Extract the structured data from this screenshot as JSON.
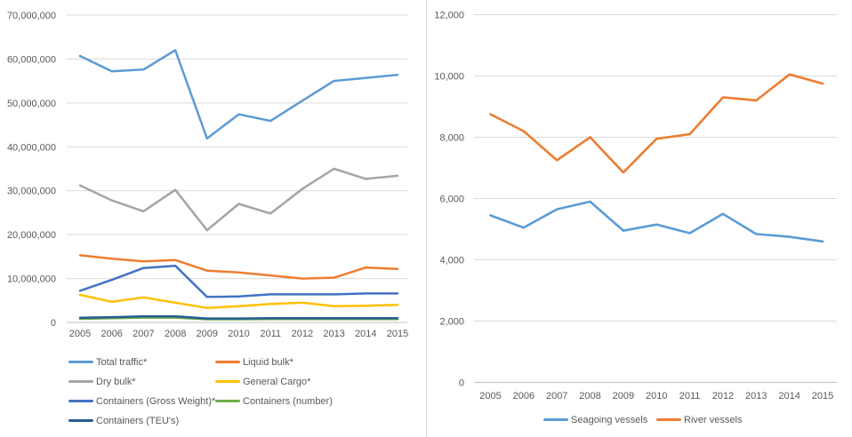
{
  "page": {
    "background": "#ffffff",
    "divider_color": "#d9d9d9",
    "grid_color": "#d9d9d9",
    "axis_color": "#bfbfbf",
    "label_color": "#595959"
  },
  "chart_data": [
    {
      "type": "line",
      "title": "",
      "xlabel": "",
      "ylabel": "",
      "grid": true,
      "legend_position": "bottom-left-two-columns",
      "categories": [
        "2005",
        "2006",
        "2007",
        "2008",
        "2009",
        "2010",
        "2011",
        "2012",
        "2013",
        "2014",
        "2015"
      ],
      "ylim": [
        0,
        70000000
      ],
      "ytick_values": [
        70000000,
        60000000,
        50000000,
        40000000,
        30000000,
        20000000,
        10000000,
        0
      ],
      "ytick_labels": [
        "70,000,000",
        "60,000,000",
        "50,000,000",
        "40,000,000",
        "30,000,000",
        "20,000,000",
        "10,000,000",
        "0"
      ],
      "series": [
        {
          "name": "Total traffic*",
          "color": "#5B9BD5",
          "values": [
            60700000,
            57200000,
            57600000,
            62000000,
            41900000,
            47400000,
            45900000,
            50500000,
            55000000,
            55700000,
            56400000
          ]
        },
        {
          "name": "Liquid bulk*",
          "color": "#ED7D31",
          "values": [
            15300000,
            14500000,
            13900000,
            14200000,
            11800000,
            11400000,
            10700000,
            10000000,
            10200000,
            12500000,
            12200000
          ]
        },
        {
          "name": "Dry bulk*",
          "color": "#A5A5A5",
          "values": [
            31200000,
            27800000,
            25300000,
            30200000,
            21000000,
            27000000,
            24800000,
            30400000,
            35000000,
            32700000,
            33400000
          ]
        },
        {
          "name": "General Cargo*",
          "color": "#FFC000",
          "values": [
            6300000,
            4700000,
            5700000,
            4500000,
            3300000,
            3700000,
            4200000,
            4500000,
            3700000,
            3800000,
            4000000
          ]
        },
        {
          "name": "Containers (Gross Weight)*",
          "color": "#4472C4",
          "values": [
            7200000,
            9700000,
            12400000,
            12900000,
            5800000,
            5900000,
            6400000,
            6400000,
            6400000,
            6600000,
            6600000
          ]
        },
        {
          "name": "Containers (number)",
          "color": "#70AD47",
          "values": [
            800000,
            950000,
            1100000,
            1100000,
            700000,
            700000,
            750000,
            750000,
            750000,
            750000,
            750000
          ]
        },
        {
          "name": "Containers (TEU's)",
          "color": "#255E91",
          "values": [
            1050000,
            1200000,
            1400000,
            1400000,
            900000,
            900000,
            950000,
            950000,
            950000,
            950000,
            950000
          ]
        }
      ]
    },
    {
      "type": "line",
      "title": "",
      "xlabel": "",
      "ylabel": "",
      "grid": true,
      "legend_position": "bottom-center",
      "categories": [
        "2005",
        "2006",
        "2007",
        "2008",
        "2009",
        "2010",
        "2011",
        "2012",
        "2013",
        "2014",
        "2015"
      ],
      "ylim": [
        0,
        12000
      ],
      "ytick_values": [
        12000,
        10000,
        8000,
        6000,
        4000,
        2000,
        0
      ],
      "ytick_labels": [
        "12,000",
        "10,000",
        "8,000",
        "6,000",
        "4,000",
        "2,000",
        "0"
      ],
      "series": [
        {
          "name": "Seagoing vessels",
          "color": "#5B9BD5",
          "values": [
            5450,
            5050,
            5650,
            5900,
            4950,
            5150,
            4870,
            5500,
            4840,
            4750,
            4600
          ]
        },
        {
          "name": "River vessels",
          "color": "#ED7D31",
          "values": [
            8750,
            8200,
            7250,
            8000,
            6850,
            7950,
            8100,
            9300,
            9200,
            10050,
            9750
          ]
        }
      ]
    }
  ]
}
